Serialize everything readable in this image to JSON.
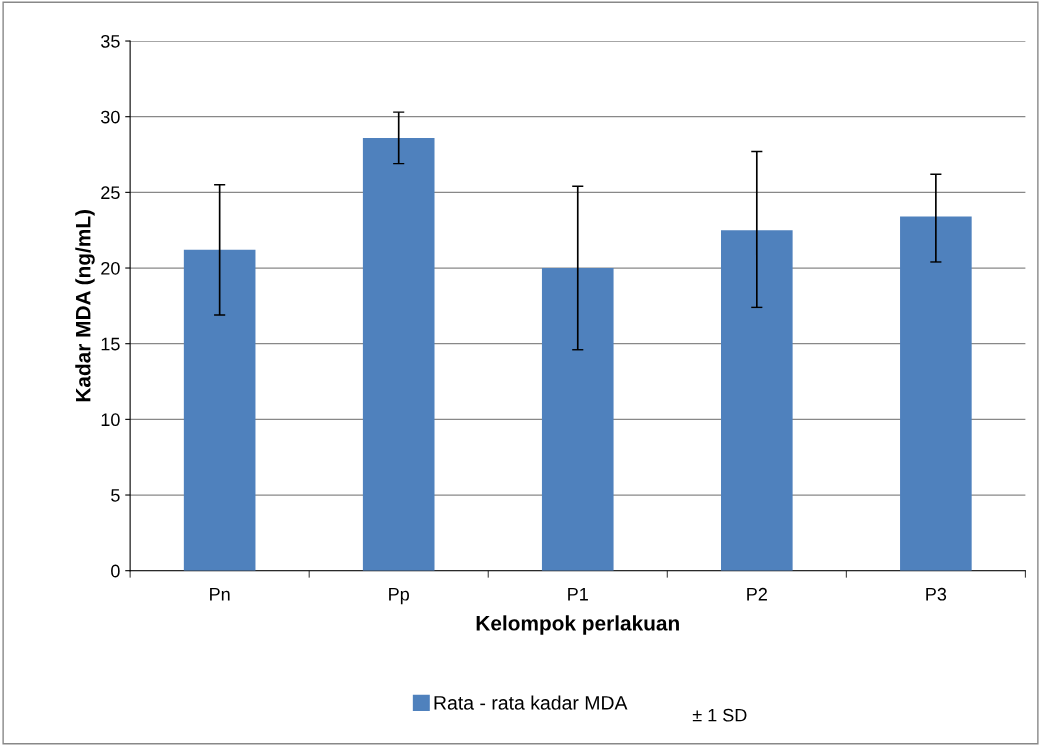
{
  "chart_data": {
    "type": "bar",
    "xlabel": "Kelompok perlakuan",
    "ylabel": "Kadar MDA (ng/mL)",
    "categories": [
      "Pn",
      "Pp",
      "P1",
      "P2",
      "P3"
    ],
    "series": [
      {
        "name": "Rata - rata kadar MDA",
        "color": "#4f81bd",
        "values": [
          21.2,
          28.6,
          20.0,
          22.5,
          23.4
        ],
        "errors": [
          [
            16.9,
            25.5
          ],
          [
            26.9,
            30.3
          ],
          [
            14.6,
            25.4
          ],
          [
            17.4,
            27.7
          ],
          [
            20.4,
            26.2
          ]
        ]
      }
    ],
    "ylim": [
      0,
      35
    ],
    "yticks": [
      0,
      5,
      10,
      15,
      20,
      25,
      30,
      35
    ],
    "grid": "y",
    "legend": "bottom",
    "annotations": [
      "± 1 SD"
    ]
  }
}
